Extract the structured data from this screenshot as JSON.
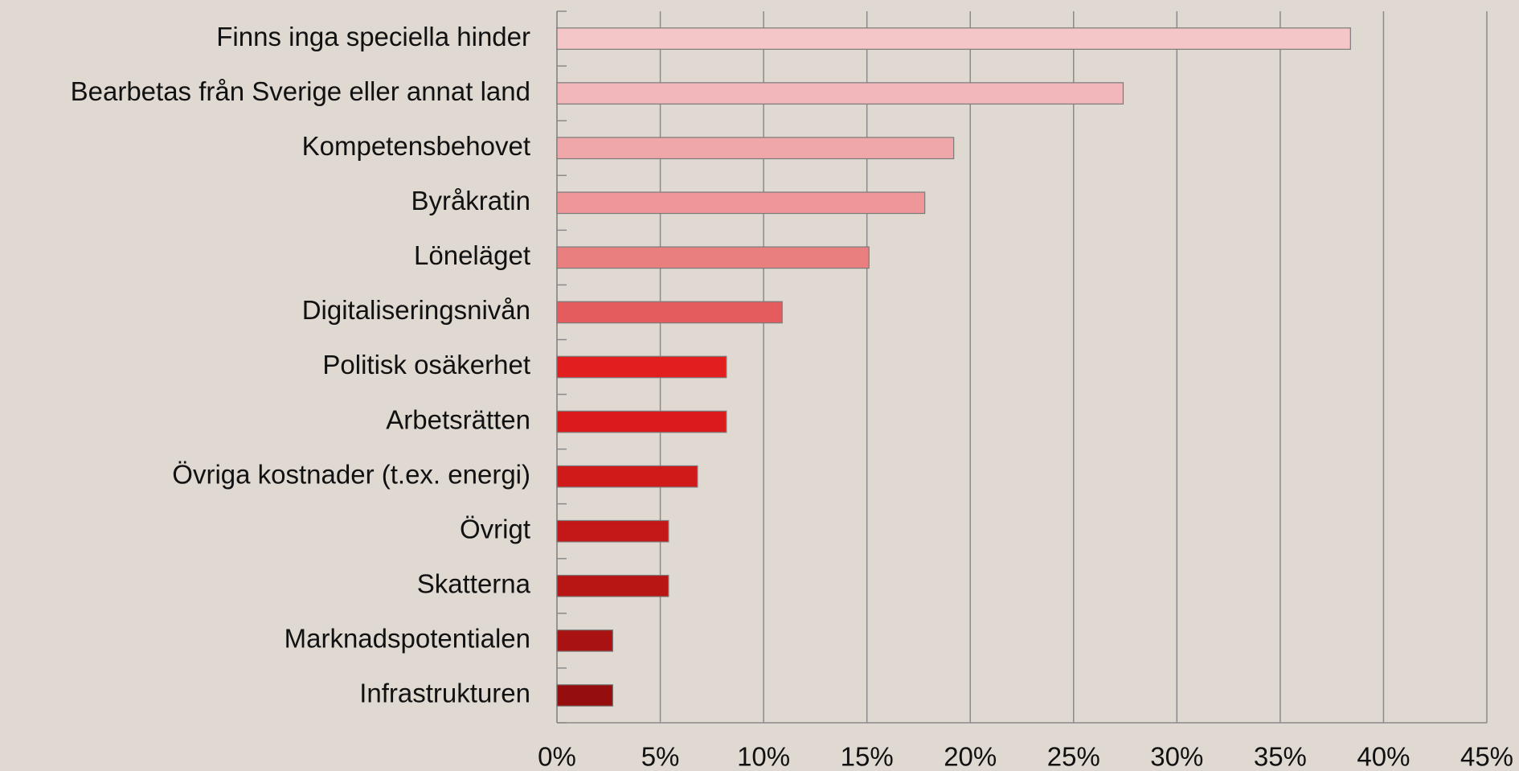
{
  "chart_data": {
    "type": "bar",
    "orientation": "horizontal",
    "categories": [
      "Finns inga speciella hinder",
      "Bearbetas från Sverige eller annat land",
      "Kompetensbehovet",
      "Byråkratin",
      "Löneläget",
      "Digitaliseringsnivån",
      "Politisk osäkerhet",
      "Arbetsrätten",
      "Övriga kostnader (t.ex. energi)",
      "Övrigt",
      "Skatterna",
      "Marknadspotentialen",
      "Infrastrukturen"
    ],
    "values": [
      38.4,
      27.4,
      19.2,
      17.8,
      15.1,
      10.9,
      8.2,
      8.2,
      6.8,
      5.4,
      5.4,
      2.7,
      2.7
    ],
    "colors": [
      "#f4c6c8",
      "#f2b7ba",
      "#f0a7aa",
      "#ee9698",
      "#ea7f80",
      "#e55c5e",
      "#e21e1e",
      "#db1b1b",
      "#d01a1a",
      "#c41818",
      "#b81515",
      "#a81212",
      "#950d0d"
    ],
    "xlim": [
      0,
      45
    ],
    "xticks": [
      {
        "value": 0,
        "label": "0%"
      },
      {
        "value": 5,
        "label": "5%"
      },
      {
        "value": 10,
        "label": "10%"
      },
      {
        "value": 15,
        "label": "15%"
      },
      {
        "value": 20,
        "label": "20%"
      },
      {
        "value": 25,
        "label": "25%"
      },
      {
        "value": 30,
        "label": "30%"
      },
      {
        "value": 35,
        "label": "35%"
      },
      {
        "value": 40,
        "label": "40%"
      },
      {
        "value": 45,
        "label": "45%"
      }
    ],
    "grid": true
  }
}
